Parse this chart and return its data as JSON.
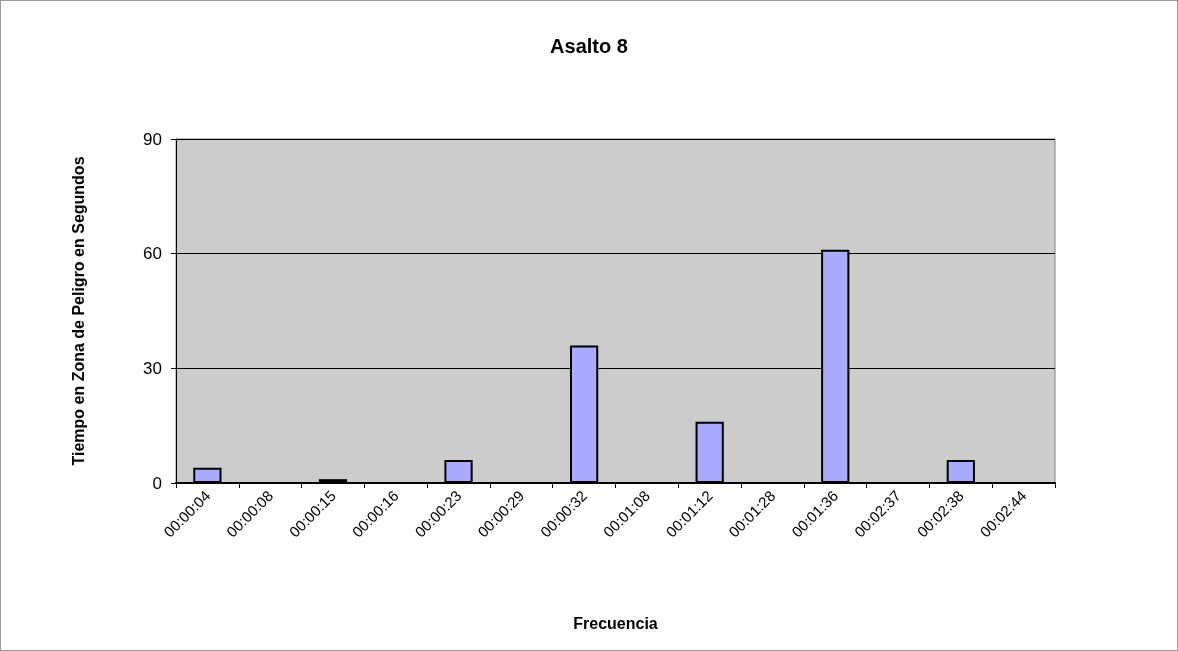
{
  "chart_data": {
    "type": "bar",
    "title": "Asalto 8",
    "xlabel": "Frecuencia",
    "ylabel": "Tiempo en Zona de Peligro en Segundos",
    "categories": [
      "00:00:04",
      "00:00:08",
      "00:00:15",
      "00:00:16",
      "00:00:23",
      "00:00:29",
      "00:00:32",
      "00:01:08",
      "00:01:12",
      "00:01:28",
      "00:01:36",
      "00:02:37",
      "00:02:38",
      "00:02:44"
    ],
    "values": [
      4,
      0,
      1,
      0,
      6,
      0,
      36,
      0,
      16,
      0,
      61,
      0,
      6,
      0
    ],
    "color": "#aaaaff",
    "ylim": [
      0,
      90
    ],
    "yticks": [
      0,
      30,
      60,
      90
    ],
    "grid": "y"
  }
}
